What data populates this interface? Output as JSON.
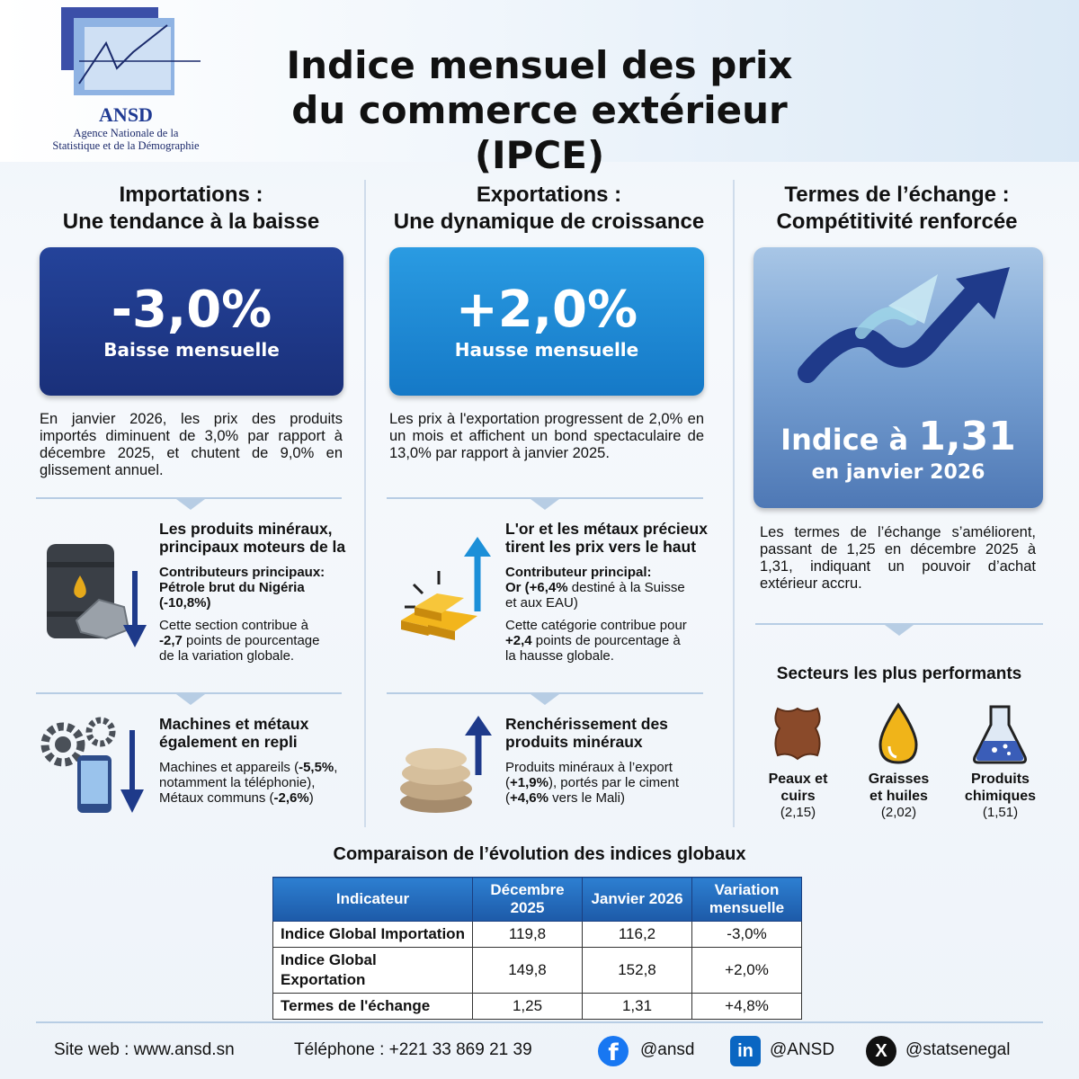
{
  "header": {
    "title_line1": "Indice mensuel des prix",
    "title_line2": "du commerce extérieur (IPCE)",
    "logo_name": "ANSD",
    "logo_sub1": "Agence Nationale de la",
    "logo_sub2": "Statistique et de la Démographie"
  },
  "imports": {
    "title1": "Importations :",
    "title2": "Une tendance à la baisse",
    "kpi_value": "-3,0%",
    "kpi_label": "Baisse mensuelle",
    "kpi_color": "#1e3a8a",
    "text": "En janvier 2026, les prix des produits importés diminuent de 3,0% par rapport à décembre 2025, et chutent de 9,0% en glissement annuel.",
    "sub1": {
      "title1": "Les produits minéraux,",
      "title2": "principaux moteurs de la",
      "contrib_label": "Contributeurs principaux:",
      "contrib_value": "Pétrole brut du Nigéria",
      "contrib_pct": "(-10,8%)",
      "desc1": "Cette section contribue à",
      "desc_pts": "-2,7",
      "desc2": " points de pourcentage",
      "desc3": "de la variation globale."
    },
    "sub2": {
      "title1": "Machines et métaux",
      "title2": "également en repli",
      "line1a": "Machines et appareils (",
      "line1b": "-5,5%",
      "line1c": ",",
      "line2": "notamment la téléphonie),",
      "line3a": "Métaux communs (",
      "line3b": "-2,6%",
      "line3c": ")"
    }
  },
  "exports": {
    "title1": "Exportations :",
    "title2": "Une dynamique de croissance",
    "kpi_value": "+2,0%",
    "kpi_label": "Hausse mensuelle",
    "kpi_color": "#1b8fd8",
    "text": "Les prix à l'exportation progressent de 2,0% en un mois et affichent un bond spectaculaire de 13,0% par rapport à janvier 2025.",
    "sub1": {
      "title1": "L'or et les métaux précieux",
      "title2": "tirent les prix vers le haut",
      "contrib_label": "Contributeur principal:",
      "line1a": "Or (",
      "line1b": "+6,4%",
      "line1c": " destiné à la Suisse",
      "line2": "et aux EAU)",
      "desc1": "Cette catégorie contribue pour",
      "desc_pts": "+2,4",
      "desc2": " points de pourcentage à",
      "desc3": "la hausse globale."
    },
    "sub2": {
      "title1": "Renchérissement des",
      "title2": "produits minéraux",
      "line1": "Produits minéraux à l’export",
      "line2a": "(",
      "line2b": "+1,9%",
      "line2c": "), portés par le ciment",
      "line3a": "(",
      "line3b": "+4,6%",
      "line3c": " vers le Mali)"
    }
  },
  "terms": {
    "title1": "Termes de l’échange :",
    "title2": "Compétitivité renforcée",
    "kpi_prefix": "Indice à ",
    "kpi_value": "1,31",
    "kpi_label": "en janvier 2026",
    "kpi_color": "#5b85bf",
    "text": "Les termes de l’échange s’améliorent, passant de 1,25 en décembre 2025 à 1,31, indiquant un pouvoir d’achat extérieur accru.",
    "sectors_title": "Secteurs les plus performants",
    "sectors": [
      {
        "name1": "Peaux et",
        "name2": "cuirs",
        "value": "(2,15)",
        "icon": "leather-icon"
      },
      {
        "name1": "Graisses",
        "name2": "et huiles",
        "value": "(2,02)",
        "icon": "oil-drop-icon"
      },
      {
        "name1": "Produits",
        "name2": "chimiques",
        "value": "(1,51)",
        "icon": "flask-icon"
      }
    ]
  },
  "comparison": {
    "title": "Comparaison de l’évolution des indices globaux",
    "headers": [
      "Indicateur",
      "Décembre 2025",
      "Janvier 2026",
      "Variation mensuelle"
    ],
    "rows": [
      [
        "Indice Global Importation",
        "119,8",
        "116,2",
        "-3,0%"
      ],
      [
        "Indice Global Exportation",
        "149,8",
        "152,8",
        "+2,0%"
      ],
      [
        "Termes de l'échange",
        "1,25",
        "1,31",
        "+4,8%"
      ]
    ]
  },
  "footer": {
    "site": "Site web : www.ansd.sn",
    "phone": "Téléphone : +221 33 869 21 39",
    "facebook": "@ansd",
    "linkedin": "@ANSD",
    "x": "@statsenegal"
  }
}
